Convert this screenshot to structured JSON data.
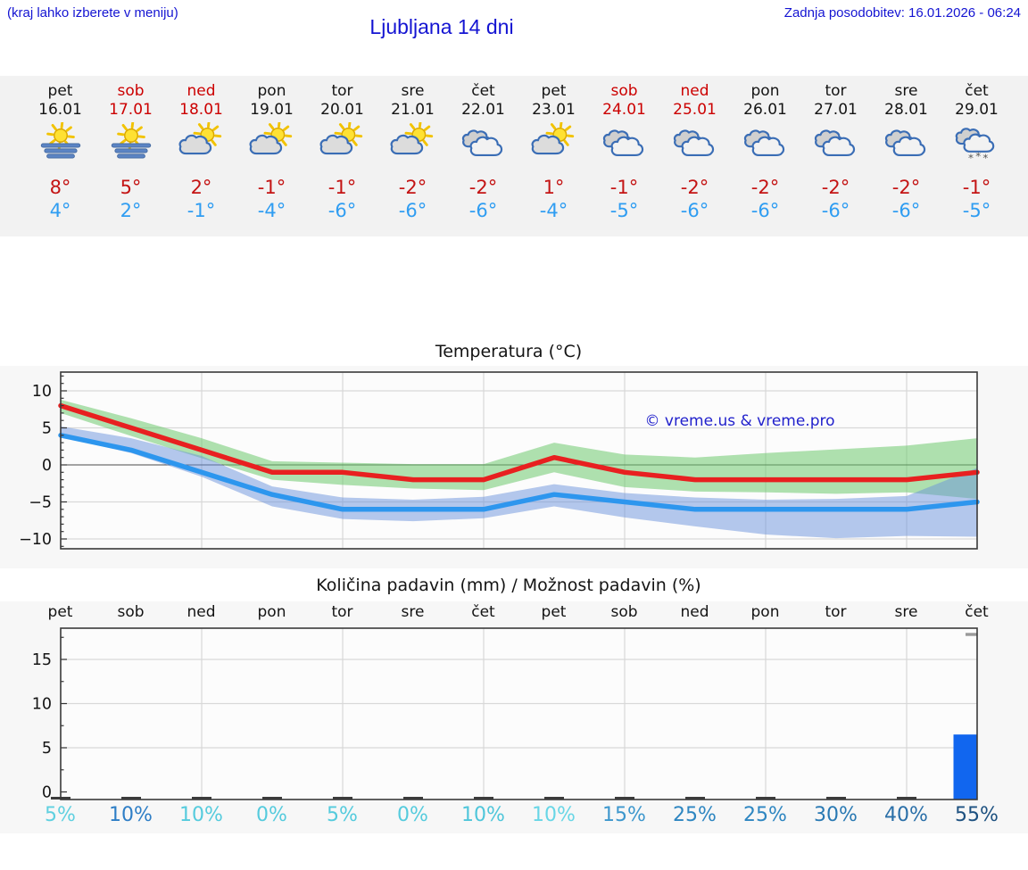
{
  "header": {
    "hint": "(kraj lahko izberete v meniju)",
    "title": "Ljubljana 14 dni",
    "updated": "Zadnja posodobitev: 16.01.2026 - 06:24"
  },
  "colors": {
    "header_blue": "#1414d2",
    "weekend_red": "#cc0000",
    "tmax_red": "#c41414",
    "tmin_blue": "#2f9df2",
    "strip_bg": "#f2f2f2",
    "panel_bg": "#f7f7f7",
    "plot_bg": "#fcfcfc",
    "grid": "#d8d8d8",
    "max_line": "#e82020",
    "min_line": "#2d96ee",
    "max_band": "rgba(110,200,110,0.55)",
    "min_band": "rgba(105,145,220,0.50)",
    "precip_bar": "#1166ef",
    "zero_bar": "#3c3c3c",
    "max_marker": "#9a9a9a",
    "watermark_blue": "#2121cc"
  },
  "days": [
    {
      "name": "pet",
      "date": "16.01",
      "weekend": false,
      "icon": "fog-sun",
      "tmax": "8°",
      "tmin": "4°"
    },
    {
      "name": "sob",
      "date": "17.01",
      "weekend": true,
      "icon": "fog-sun",
      "tmax": "5°",
      "tmin": "2°"
    },
    {
      "name": "ned",
      "date": "18.01",
      "weekend": true,
      "icon": "sun-cloud",
      "tmax": "2°",
      "tmin": "-1°"
    },
    {
      "name": "pon",
      "date": "19.01",
      "weekend": false,
      "icon": "sun-cloud",
      "tmax": "-1°",
      "tmin": "-4°"
    },
    {
      "name": "tor",
      "date": "20.01",
      "weekend": false,
      "icon": "sun-cloud",
      "tmax": "-1°",
      "tmin": "-6°"
    },
    {
      "name": "sre",
      "date": "21.01",
      "weekend": false,
      "icon": "sun-cloud",
      "tmax": "-2°",
      "tmin": "-6°"
    },
    {
      "name": "čet",
      "date": "22.01",
      "weekend": false,
      "icon": "cloudy",
      "tmax": "-2°",
      "tmin": "-6°"
    },
    {
      "name": "pet",
      "date": "23.01",
      "weekend": false,
      "icon": "sun-cloud",
      "tmax": "1°",
      "tmin": "-4°"
    },
    {
      "name": "sob",
      "date": "24.01",
      "weekend": true,
      "icon": "cloudy",
      "tmax": "-1°",
      "tmin": "-5°"
    },
    {
      "name": "ned",
      "date": "25.01",
      "weekend": true,
      "icon": "cloudy",
      "tmax": "-2°",
      "tmin": "-6°"
    },
    {
      "name": "pon",
      "date": "26.01",
      "weekend": false,
      "icon": "cloudy",
      "tmax": "-2°",
      "tmin": "-6°"
    },
    {
      "name": "tor",
      "date": "27.01",
      "weekend": false,
      "icon": "cloudy",
      "tmax": "-2°",
      "tmin": "-6°"
    },
    {
      "name": "sre",
      "date": "28.01",
      "weekend": false,
      "icon": "cloudy",
      "tmax": "-2°",
      "tmin": "-6°"
    },
    {
      "name": "čet",
      "date": "29.01",
      "weekend": false,
      "icon": "cloudy-snow",
      "tmax": "-1°",
      "tmin": "-5°"
    }
  ],
  "chart_data": [
    {
      "type": "line",
      "title": "Temperatura (°C)",
      "watermark": "© vreme.us & vreme.pro",
      "x": [
        "16.01",
        "17.01",
        "18.01",
        "19.01",
        "20.01",
        "21.01",
        "22.01",
        "23.01",
        "24.01",
        "25.01",
        "26.01",
        "27.01",
        "28.01",
        "29.01"
      ],
      "series": [
        {
          "name": "max",
          "color": "#e82020",
          "values": [
            8,
            5,
            2,
            -1,
            -1,
            -2,
            -2,
            1,
            -1,
            -2,
            -2,
            -2,
            -2,
            -1
          ],
          "band_hi": [
            8.8,
            6.3,
            3.6,
            0.5,
            0.3,
            0.1,
            0.1,
            3.0,
            1.4,
            1.0,
            1.6,
            2.1,
            2.6,
            3.6
          ],
          "band_lo": [
            7.0,
            3.9,
            0.9,
            -2.0,
            -2.7,
            -3.2,
            -3.4,
            -1.0,
            -3.0,
            -3.6,
            -3.7,
            -3.9,
            -3.7,
            -4.6
          ]
        },
        {
          "name": "min",
          "color": "#2d96ee",
          "values": [
            4,
            2,
            -1,
            -4,
            -6,
            -6,
            -6,
            -4,
            -5,
            -6,
            -6,
            -6,
            -6,
            -5
          ],
          "band_hi": [
            5.2,
            3.6,
            1.2,
            -2.9,
            -4.4,
            -4.7,
            -4.3,
            -2.6,
            -3.8,
            -4.4,
            -4.7,
            -4.6,
            -4.2,
            -0.4
          ],
          "band_lo": [
            3.8,
            1.6,
            -1.6,
            -5.6,
            -7.3,
            -7.6,
            -7.2,
            -5.6,
            -7.1,
            -8.3,
            -9.4,
            -9.9,
            -9.6,
            -9.7
          ]
        }
      ],
      "yticks": [
        10,
        5,
        0,
        -5,
        -10
      ],
      "ylim": [
        -11.3,
        12.6
      ],
      "grid": true,
      "legend": "none"
    },
    {
      "type": "bar",
      "title": "Količina padavin (mm) / Možnost padavin (%)",
      "categories": [
        "pet",
        "sob",
        "ned",
        "pon",
        "tor",
        "sre",
        "čet",
        "pet",
        "sob",
        "ned",
        "pon",
        "tor",
        "sre",
        "čet"
      ],
      "values_mm": [
        0,
        0,
        0,
        0,
        0,
        0,
        0,
        0,
        0,
        0,
        0,
        0,
        0,
        6.5
      ],
      "probabilities_pct": [
        5,
        10,
        10,
        0,
        5,
        0,
        10,
        10,
        15,
        25,
        25,
        30,
        40,
        55
      ],
      "probability_labels": [
        "5%",
        "10%",
        "10%",
        "0%",
        "5%",
        "0%",
        "10%",
        "10%",
        "15%",
        "25%",
        "25%",
        "30%",
        "40%",
        "55%"
      ],
      "probability_colors": [
        "#5fd0e0",
        "#2e7ec6",
        "#55cbdd",
        "#55cbdd",
        "#55cbdd",
        "#55cbdd",
        "#4fc6da",
        "#68d6e6",
        "#3d97cd",
        "#2e86c1",
        "#2e86c1",
        "#2979b3",
        "#2a6fa8",
        "#1d5180"
      ],
      "max_marker_mm": 18,
      "yticks": [
        0,
        5,
        10,
        15
      ],
      "ylim": [
        0,
        19.4
      ],
      "grid": true
    }
  ]
}
